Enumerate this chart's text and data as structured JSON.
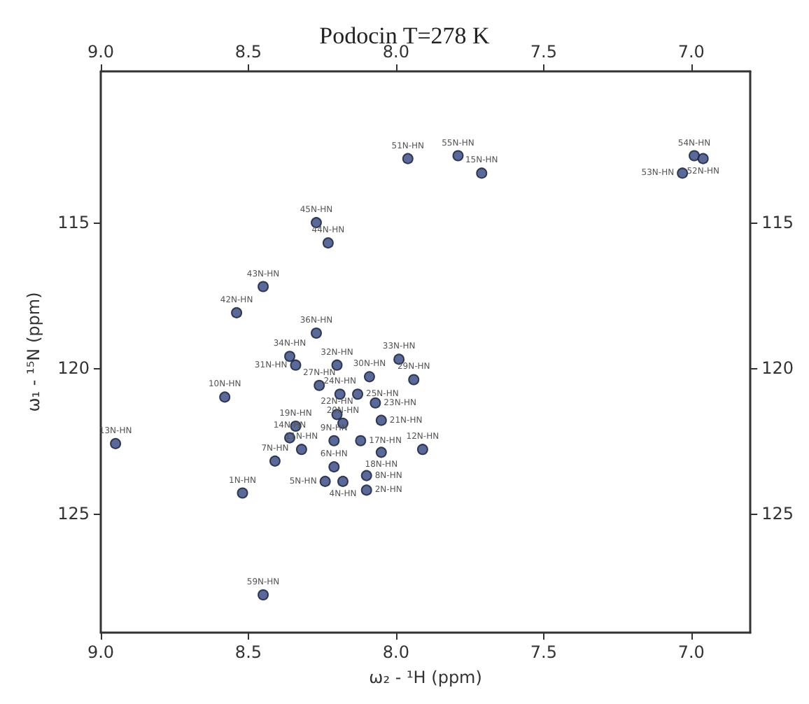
{
  "chart_data": {
    "type": "scatter",
    "title": "Podocin T=278 K",
    "xlabel": "ω₂ - ¹H (ppm)",
    "ylabel": "ω₁ - ¹⁵N (ppm)",
    "x": [
      7.96,
      7.79,
      7.71,
      7.03,
      6.99,
      6.96,
      8.27,
      8.23,
      8.45,
      8.54,
      8.27,
      8.36,
      8.34,
      8.2,
      7.99,
      7.94,
      8.09,
      8.26,
      8.19,
      8.13,
      8.07,
      8.2,
      8.18,
      8.05,
      8.34,
      8.36,
      8.21,
      8.12,
      7.91,
      8.32,
      8.05,
      8.41,
      8.21,
      8.1,
      8.24,
      8.18,
      8.1,
      8.52,
      8.95,
      8.58,
      8.45
    ],
    "values": [
      112.8,
      112.7,
      113.3,
      113.3,
      112.7,
      112.8,
      115.0,
      115.7,
      117.2,
      118.1,
      118.8,
      119.6,
      119.9,
      119.9,
      119.7,
      120.4,
      120.3,
      120.6,
      120.9,
      120.9,
      121.2,
      121.6,
      121.9,
      121.8,
      122.0,
      122.4,
      122.5,
      122.5,
      122.8,
      122.8,
      122.9,
      123.2,
      123.4,
      123.7,
      123.9,
      123.9,
      124.2,
      124.3,
      122.6,
      121.0,
      127.8
    ],
    "color": "#3d4f85",
    "marker": "circle",
    "xlim": [
      9.0,
      6.8
    ],
    "xticks": [
      {
        "value": 9,
        "label": "9.0"
      },
      8.5,
      {
        "value": 8,
        "label": "8.0"
      },
      7.5,
      {
        "value": 7,
        "label": "7.0"
      }
    ],
    "x2lim": [
      9.0,
      6.8
    ],
    "x2ticks": [
      {
        "value": 9,
        "label": "9.0"
      },
      8.5,
      {
        "value": 8,
        "label": "8.0"
      },
      7.5,
      {
        "value": 7,
        "label": "7.0"
      }
    ],
    "ylim": [
      129.1,
      109.8
    ],
    "yticks": [
      115,
      120,
      125
    ],
    "y2lim": [
      129.1,
      109.8
    ],
    "y2ticks": [
      115,
      120,
      125
    ],
    "grid": false,
    "annotations": [
      {
        "text": "51N-HN",
        "x": 7.96,
        "y": 112.8
      },
      {
        "text": "55N-HN",
        "x": 7.79,
        "y": 112.7
      },
      {
        "text": "15N-HN",
        "x": 7.71,
        "y": 113.3
      },
      {
        "text": "53N-HN",
        "x": 7.03,
        "y": 113.3
      },
      {
        "text": "54N-HN",
        "x": 6.99,
        "y": 112.7
      },
      {
        "text": "52N-HN",
        "x": 6.96,
        "y": 112.8
      },
      {
        "text": "45N-HN",
        "x": 8.27,
        "y": 115.0
      },
      {
        "text": "44N-HN",
        "x": 8.23,
        "y": 115.7
      },
      {
        "text": "43N-HN",
        "x": 8.45,
        "y": 117.2
      },
      {
        "text": "42N-HN",
        "x": 8.54,
        "y": 118.1
      },
      {
        "text": "36N-HN",
        "x": 8.27,
        "y": 118.8
      },
      {
        "text": "34N-HN",
        "x": 8.36,
        "y": 119.6
      },
      {
        "text": "31N-HN",
        "x": 8.34,
        "y": 119.9
      },
      {
        "text": "32N-HN",
        "x": 8.2,
        "y": 119.9
      },
      {
        "text": "33N-HN",
        "x": 7.99,
        "y": 119.7
      },
      {
        "text": "29N-HN",
        "x": 7.94,
        "y": 120.4
      },
      {
        "text": "30N-HN",
        "x": 8.09,
        "y": 120.3
      },
      {
        "text": "27N-HN",
        "x": 8.26,
        "y": 120.6
      },
      {
        "text": "24N-HN",
        "x": 8.19,
        "y": 120.9
      },
      {
        "text": "25N-HN",
        "x": 8.13,
        "y": 120.9
      },
      {
        "text": "23N-HN",
        "x": 8.07,
        "y": 121.2
      },
      {
        "text": "22N-HN",
        "x": 8.2,
        "y": 121.6
      },
      {
        "text": "20N-HN",
        "x": 8.18,
        "y": 121.9
      },
      {
        "text": "21N-HN",
        "x": 8.05,
        "y": 121.8
      },
      {
        "text": "19N-HN",
        "x": 8.34,
        "y": 122.0
      },
      {
        "text": "14N-HN",
        "x": 8.36,
        "y": 122.4
      },
      {
        "text": "9N-HN",
        "x": 8.21,
        "y": 122.5
      },
      {
        "text": "17N-HN",
        "x": 8.12,
        "y": 122.5
      },
      {
        "text": "12N-HN",
        "x": 7.91,
        "y": 122.8
      },
      {
        "text": "11N-HN",
        "x": 8.32,
        "y": 122.8
      },
      {
        "text": "18N-HN",
        "x": 8.05,
        "y": 122.9
      },
      {
        "text": "7N-HN",
        "x": 8.41,
        "y": 123.2
      },
      {
        "text": "6N-HN",
        "x": 8.21,
        "y": 123.4
      },
      {
        "text": "8N-HN",
        "x": 8.1,
        "y": 123.7
      },
      {
        "text": "5N-HN",
        "x": 8.24,
        "y": 123.9
      },
      {
        "text": "4N-HN",
        "x": 8.18,
        "y": 123.9
      },
      {
        "text": "2N-HN",
        "x": 8.1,
        "y": 124.2
      },
      {
        "text": "1N-HN",
        "x": 8.52,
        "y": 124.3
      },
      {
        "text": "13N-HN",
        "x": 8.95,
        "y": 122.6
      },
      {
        "text": "10N-HN",
        "x": 8.58,
        "y": 121.0
      },
      {
        "text": "59N-HN",
        "x": 8.45,
        "y": 127.8
      }
    ]
  }
}
